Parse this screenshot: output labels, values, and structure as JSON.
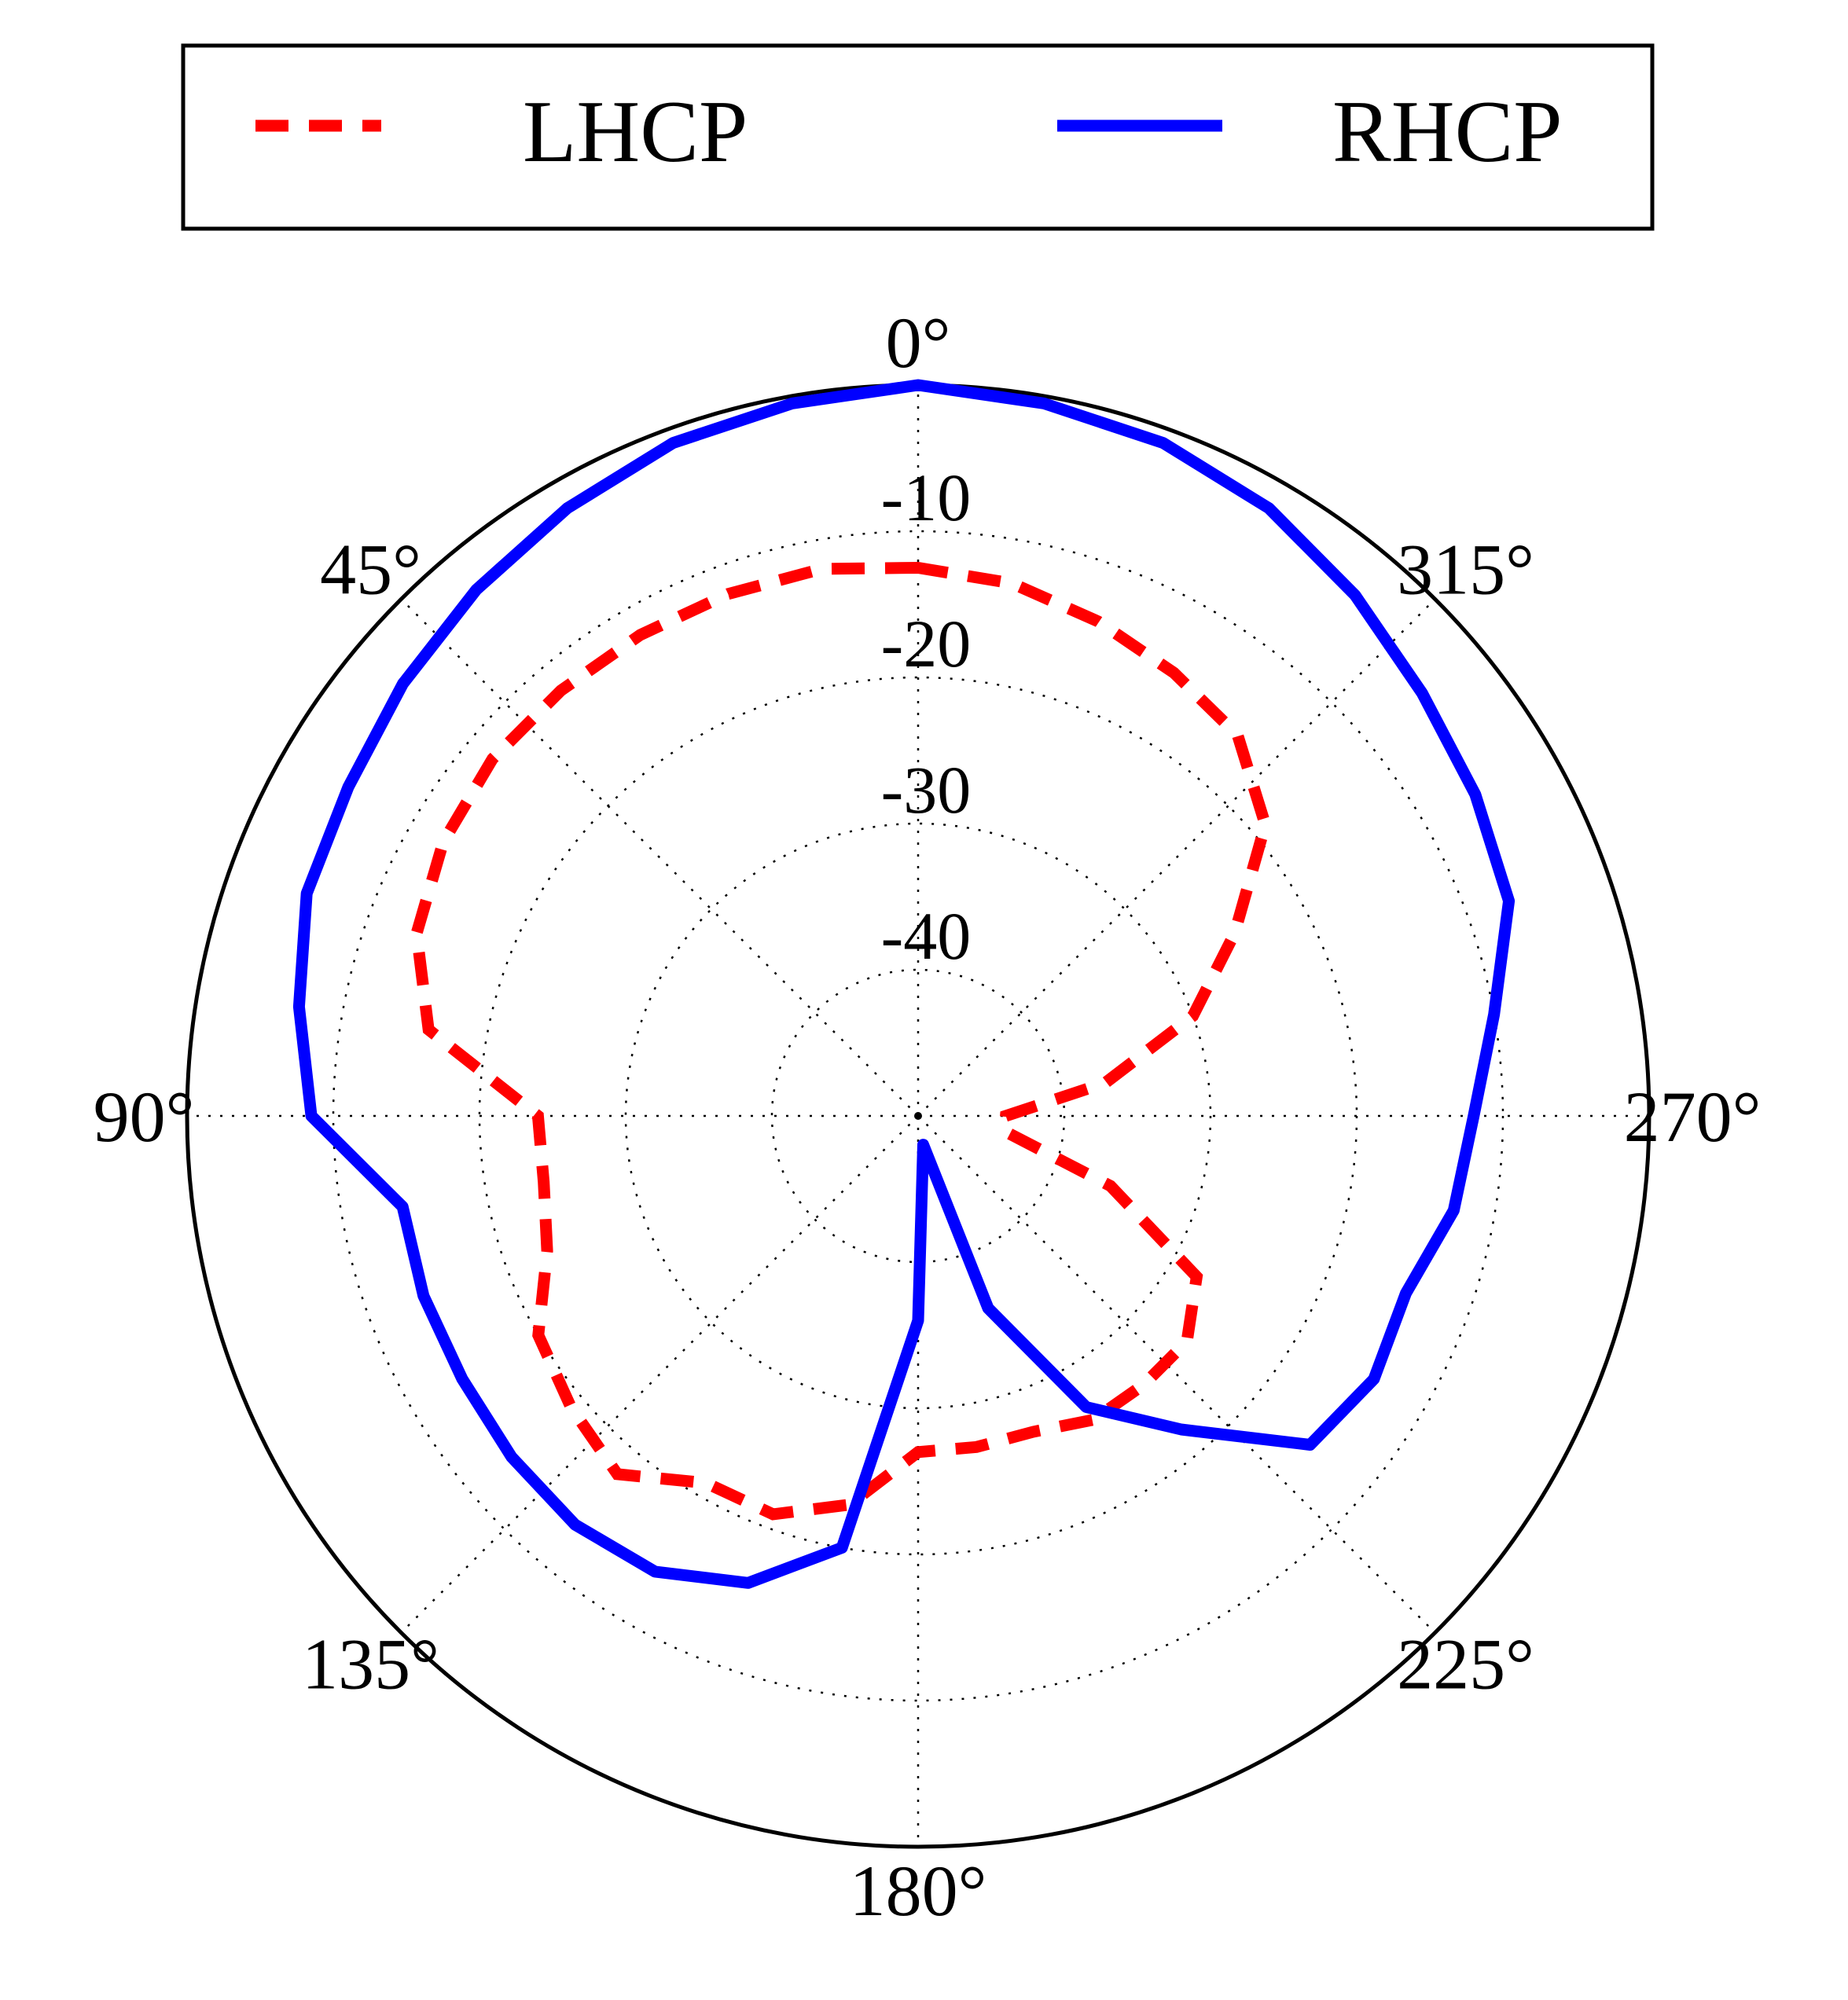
{
  "chart_data": {
    "type": "line",
    "projection": "polar",
    "theta_direction": "counterclockwise",
    "theta_zero": "top",
    "r_range": [
      -50,
      0
    ],
    "r_ticks": [
      -10,
      -20,
      -30,
      -40
    ],
    "r_tick_labels": [
      "-10",
      "-20",
      "-30",
      "-40"
    ],
    "angle_ticks": [
      0,
      45,
      90,
      135,
      180,
      225,
      270,
      315
    ],
    "angle_labels": [
      "0°",
      "45°",
      "90°",
      "135°",
      "180°",
      "225°",
      "270°",
      "315°"
    ],
    "grid": true,
    "legend_position": "top",
    "series": [
      {
        "name": "LHCP",
        "color": "#ff0000",
        "style": "dashed",
        "theta": [
          0,
          10,
          20,
          30,
          40,
          50,
          60,
          70,
          80,
          90,
          100,
          110,
          120,
          130,
          140,
          150,
          160,
          170,
          180,
          190,
          200,
          210,
          220,
          230,
          240,
          250,
          260,
          270,
          280,
          290,
          300,
          310,
          320,
          330,
          340,
          350
        ],
        "r": [
          -12.5,
          -12,
          -12,
          -12,
          -12,
          -12,
          -12.5,
          -13.5,
          -16,
          -24,
          -24,
          -23,
          -20,
          -19,
          -18,
          -21,
          -21,
          -23,
          -27,
          -27,
          -27,
          -26,
          -26,
          -26,
          -28,
          -36,
          -44,
          -44,
          -37,
          -30,
          -25,
          -19,
          -16,
          -15,
          -14,
          -13
        ]
      },
      {
        "name": "RHCP",
        "color": "#0000ff",
        "style": "solid",
        "theta": [
          0,
          10,
          20,
          30,
          40,
          50,
          60,
          70,
          80,
          90,
          100,
          110,
          120,
          130,
          140,
          150,
          160,
          170,
          180,
          190,
          200,
          210,
          220,
          230,
          240,
          250,
          260,
          270,
          280,
          290,
          300,
          310,
          320,
          330,
          340,
          350
        ],
        "r": [
          0,
          -0.5,
          -1,
          -2,
          -3,
          -4,
          -5,
          -5.5,
          -7,
          -8.5,
          -14.2,
          -14,
          -14,
          -13.7,
          -13.5,
          -14,
          -16,
          -20,
          -36,
          -48,
          -36,
          -27,
          -22,
          -15,
          -14,
          -14.5,
          -12.8,
          -12,
          -10,
          -7,
          -6,
          -5,
          -3.5,
          -2,
          -1,
          -0.5
        ]
      }
    ]
  }
}
